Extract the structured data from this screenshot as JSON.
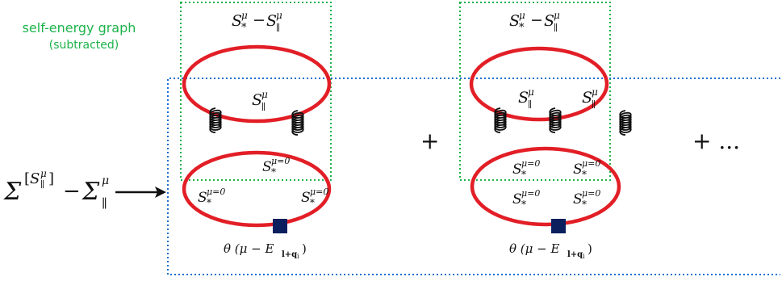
{
  "annotation": {
    "line1": "self-energy graph",
    "line2": "(subtracted)",
    "color": "#1db34a"
  },
  "lhs": {
    "sigma": "Σ",
    "sup_open": "[",
    "sup_S": "S",
    "sup_mu": "μ",
    "sup_par": "∥",
    "sup_close": "]",
    "minus": "−",
    "sub_par": "∥",
    "mu": "μ"
  },
  "operators": {
    "plus1": "+",
    "plus2": "+ ..."
  },
  "labels": {
    "S": "S",
    "star": "*",
    "par": "∥",
    "mu": "μ",
    "mu0": "μ=0",
    "minus": "−"
  },
  "theta": {
    "text1": "θ (μ − E",
    "sub": "l+q",
    "subi": "i",
    "close": ")"
  },
  "colors": {
    "loop": "#e21e26",
    "gluon": "#111111",
    "vertex": "#0b1f5e",
    "green_box": "#1db34a",
    "blue_box": "#1c6fd1"
  }
}
